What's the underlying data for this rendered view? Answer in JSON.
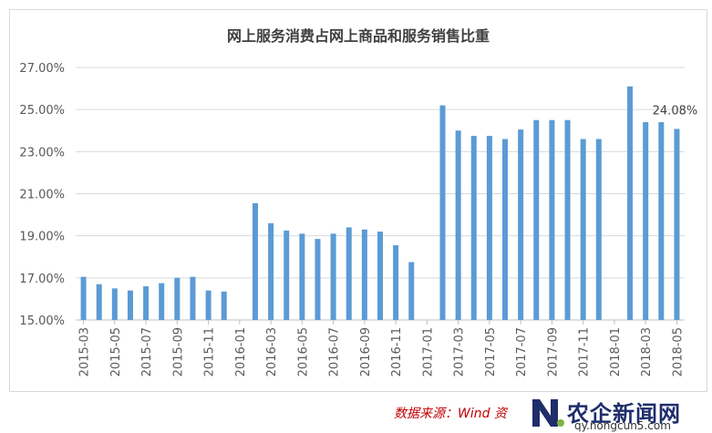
{
  "chart_data": {
    "type": "bar",
    "title": "网上服务消费占网上商品和服务销售比重",
    "x": [
      "2015-03",
      "2015-04",
      "2015-05",
      "2015-06",
      "2015-07",
      "2015-08",
      "2015-09",
      "2015-10",
      "2015-11",
      "2015-12",
      "2016-01",
      "2016-02",
      "2016-03",
      "2016-04",
      "2016-05",
      "2016-06",
      "2016-07",
      "2016-08",
      "2016-09",
      "2016-10",
      "2016-11",
      "2016-12",
      "2017-01",
      "2017-02",
      "2017-03",
      "2017-04",
      "2017-05",
      "2017-06",
      "2017-07",
      "2017-08",
      "2017-09",
      "2017-10",
      "2017-11",
      "2017-12",
      "2018-01",
      "2018-02",
      "2018-03",
      "2018-04",
      "2018-05"
    ],
    "tick_labels": [
      "2015-03",
      "2015-05",
      "2015-07",
      "2015-09",
      "2015-11",
      "2016-01",
      "2016-03",
      "2016-05",
      "2016-07",
      "2016-09",
      "2016-11",
      "2017-01",
      "2017-03",
      "2017-05",
      "2017-07",
      "2017-09",
      "2017-11",
      "2018-01",
      "2018-03",
      "2018-05"
    ],
    "values": [
      17.05,
      16.7,
      16.5,
      16.4,
      16.6,
      16.75,
      17.0,
      17.05,
      16.4,
      16.35,
      null,
      20.55,
      19.6,
      19.25,
      19.1,
      18.85,
      19.1,
      19.4,
      19.3,
      19.2,
      18.55,
      17.75,
      null,
      25.2,
      24.0,
      23.75,
      23.75,
      23.6,
      24.05,
      24.5,
      24.5,
      24.5,
      23.6,
      23.6,
      null,
      26.1,
      24.4,
      24.4,
      24.08
    ],
    "ylim": [
      15,
      27
    ],
    "yticks": [
      15,
      17,
      19,
      21,
      23,
      25,
      27
    ],
    "ytick_labels": [
      "15.00%",
      "17.00%",
      "19.00%",
      "21.00%",
      "23.00%",
      "25.00%",
      "27.00%"
    ],
    "grid": true,
    "bar_color": "#5b9bd5",
    "data_label": {
      "text": "24.08%"
    }
  },
  "source": "数据来源：Wind 资",
  "watermark": {
    "name": "农企新闻网",
    "url": "qy.nongcun5.com"
  }
}
